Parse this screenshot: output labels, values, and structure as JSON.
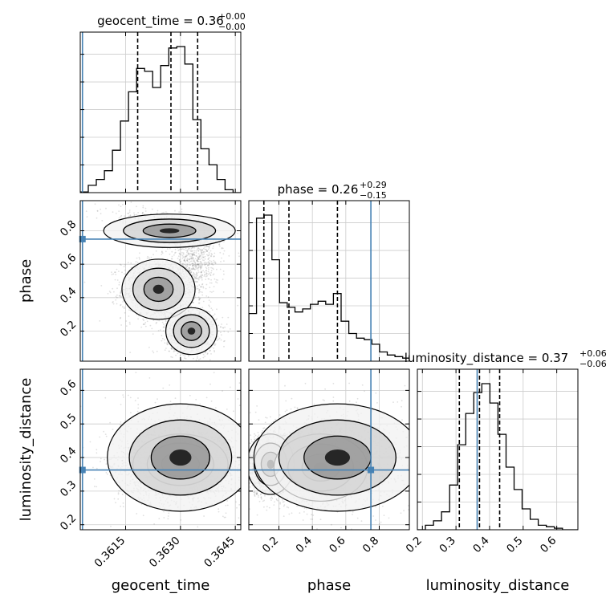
{
  "chart_data": {
    "type": "corner",
    "parameters": [
      "geocent_time",
      "phase",
      "luminosity_distance"
    ],
    "truth": {
      "geocent_time": 0.36032,
      "phase": 0.75,
      "luminosity_distance": 0.363
    },
    "titles": {
      "geocent_time": {
        "param": "geocent_time",
        "median": "0.36",
        "plus": "+0.00",
        "minus": "−0.00"
      },
      "phase": {
        "param": "phase",
        "median": "0.26",
        "plus": "+0.29",
        "minus": "−0.15"
      },
      "luminosity_distance": {
        "param": "luminosity_distance",
        "median": "0.37",
        "plus": "+0.06",
        "minus": "−0.06"
      }
    },
    "ranges": {
      "geocent_time": [
        0.36026,
        0.36465
      ],
      "phase": [
        0.02,
        0.98
      ],
      "luminosity_distance": [
        0.185,
        0.663
      ]
    },
    "ticks": {
      "geocent_time": {
        "values": [
          0.3615,
          0.363,
          0.3645
        ],
        "labels": [
          "0.3615",
          "0.3630",
          "0.3645"
        ]
      },
      "phase": {
        "values": [
          0.2,
          0.4,
          0.6,
          0.8
        ],
        "labels": [
          "0.2",
          "0.4",
          "0.6",
          "0.8"
        ]
      },
      "luminosity_distance": {
        "values": [
          0.2,
          0.3,
          0.4,
          0.5,
          0.6
        ],
        "labels": [
          "0.2",
          "0.3",
          "0.4",
          "0.5",
          "0.6"
        ]
      }
    },
    "quantiles": {
      "geocent_time": [
        0.36183,
        0.36274,
        0.36347
      ],
      "phase": [
        0.11,
        0.26,
        0.55
      ],
      "luminosity_distance": [
        0.31,
        0.37,
        0.43
      ]
    },
    "histograms": {
      "geocent_time": {
        "edges": [
          0.36026,
          0.36048,
          0.3607,
          0.36092,
          0.36114,
          0.36136,
          0.36158,
          0.3618,
          0.36202,
          0.36224,
          0.36246,
          0.36268,
          0.3629,
          0.36312,
          0.36334,
          0.36356,
          0.36378,
          0.364,
          0.36422,
          0.36444,
          0.36465
        ],
        "counts": [
          0.5,
          5,
          9,
          15,
          29,
          49,
          69,
          85,
          83,
          72,
          87,
          99,
          100,
          88,
          50,
          30,
          19,
          9,
          2,
          0
        ]
      },
      "phase": {
        "edges": [
          0.02,
          0.066,
          0.112,
          0.158,
          0.204,
          0.25,
          0.296,
          0.342,
          0.388,
          0.434,
          0.48,
          0.526,
          0.572,
          0.618,
          0.664,
          0.71,
          0.756,
          0.802,
          0.848,
          0.894,
          0.94,
          0.98
        ],
        "counts": [
          31,
          93,
          95,
          66,
          38,
          35,
          32,
          34,
          37,
          39,
          37,
          44,
          26,
          18,
          15,
          14,
          11,
          6,
          4,
          3,
          2
        ]
      },
      "luminosity_distance": {
        "edges": [
          0.185,
          0.209,
          0.233,
          0.257,
          0.281,
          0.305,
          0.329,
          0.353,
          0.377,
          0.401,
          0.425,
          0.449,
          0.473,
          0.497,
          0.521,
          0.545,
          0.569,
          0.593,
          0.617,
          0.641,
          0.663
        ],
        "counts": [
          0,
          3,
          6,
          12,
          30,
          57,
          78,
          92,
          98,
          85,
          64,
          42,
          27,
          14,
          7,
          3,
          2,
          1,
          0,
          0
        ]
      }
    }
  }
}
